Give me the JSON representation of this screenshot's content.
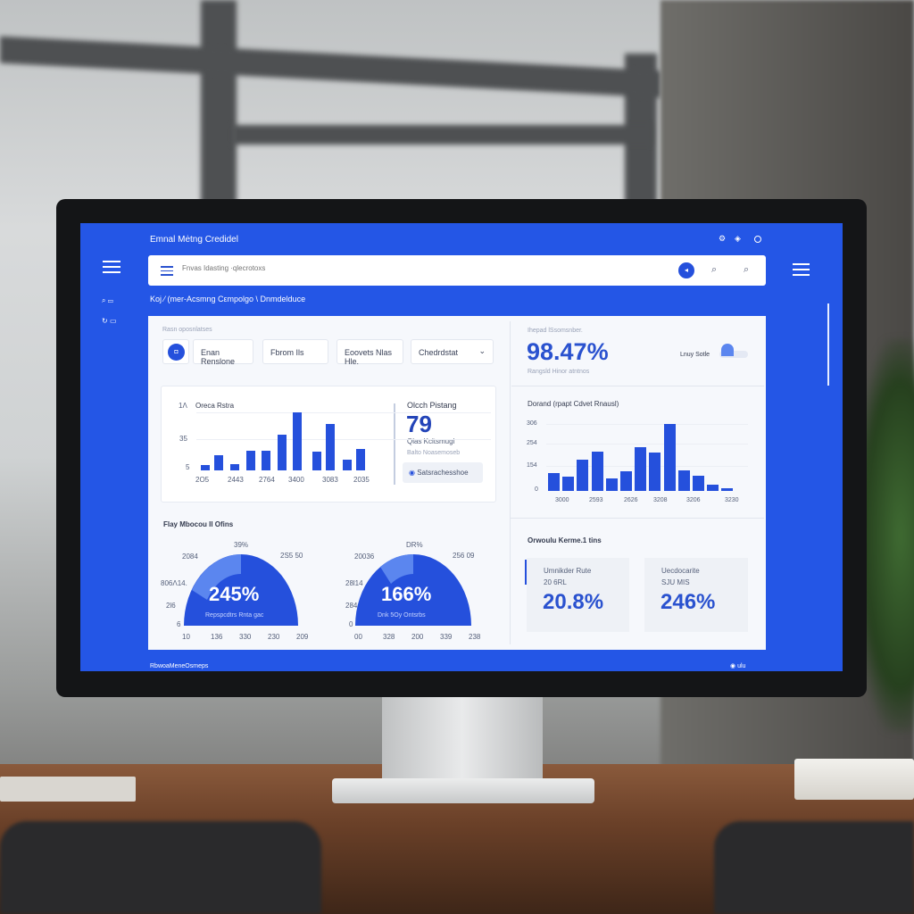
{
  "app": {
    "title": "Emnal Mėtng Credidel",
    "top_icons": [
      "settings-icon",
      "sound-icon",
      "profile-icon"
    ]
  },
  "search": {
    "placeholder": "Fnvas Idasting ·qlecrotoxs"
  },
  "breadcrumb": "Koj ⁄ (mer-Acsmng Cεmpolgo \\ Dnmdelduce",
  "sidebar": {
    "items": [
      {
        "icon": "search-icon",
        "label": "▭"
      },
      {
        "icon": "refresh-icon",
        "label": "▭"
      }
    ]
  },
  "filters": {
    "label": "Rasn oposnlatses",
    "items": [
      "Enan Renslone",
      "Fbrom Ils",
      "Eoovets Nlas Hle.",
      "Chedrdstat"
    ]
  },
  "kpi_main": {
    "label": "Ihepad lSsomsnber.",
    "value": "98.47%",
    "sub": "Rangsld Hinor atntnos",
    "toggle_label": "Lnuy Sotle"
  },
  "side_stat": {
    "label": "Olcch Pistang",
    "value": "79",
    "sub1": "Qlas Kcltsmugl",
    "sub2": "Balto Noasemoseb",
    "button": "Satsrachesshoe"
  },
  "gauges_title": "Flay Mbocou Il Ofins",
  "gauges": [
    {
      "value": "245%",
      "sub": "Repspcdtrs Rnta gac",
      "top": "39%",
      "tl": "2084",
      "tr": "2S5 50",
      "l1": "806Λ14.",
      "l2": "2l6",
      "l3": "6",
      "bottom": [
        "10",
        "136",
        "330",
        "230",
        "209"
      ]
    },
    {
      "value": "166%",
      "sub": "Dnk 5Oy Ontsrbs",
      "top": "DR%",
      "tl": "20036",
      "tr": "256 09",
      "l1": "28l14",
      "l2": "284",
      "l3": "0",
      "bottom": [
        "00",
        "328",
        "200",
        "339",
        "238"
      ]
    }
  ],
  "metrics": {
    "title": "Orwoulu Kerme.1 tins",
    "cards": [
      {
        "label": "Umnikder Rute",
        "sub": "20 6RL",
        "value": "20.8%"
      },
      {
        "label": "Uecdocarite",
        "sub": "SJU MIS",
        "value": "246%"
      }
    ]
  },
  "status_bar": {
    "left": "RbwoaMeneOsmeps",
    "right": "ulu"
  },
  "colors": {
    "screen": "#2456e6",
    "bar": "#2550dc",
    "accent_text": "#2a52cf"
  },
  "chart_data": [
    {
      "type": "bar",
      "title": "Oreca Rstra",
      "ytick_labels": [
        "1Λ",
        "35",
        "5"
      ],
      "xtick_labels": [
        "2O5",
        "2443",
        "2764",
        "3400",
        "3083",
        "2035"
      ],
      "values": [
        6,
        17,
        7,
        22,
        22,
        40,
        65,
        21,
        52,
        12,
        24
      ],
      "ylim": [
        0,
        70
      ],
      "grid": true
    },
    {
      "type": "bar",
      "title": "Dorand (rpapt Cdvet Rnausl)",
      "ytick_labels": [
        "306",
        "254",
        "154",
        "0"
      ],
      "xtick_labels": [
        "3000",
        "2593",
        "2626",
        "3208",
        "3206",
        "3230"
      ],
      "values": [
        82,
        65,
        143,
        180,
        57,
        90,
        200,
        175,
        306,
        94,
        69,
        29,
        12
      ],
      "ylim": [
        0,
        306
      ],
      "grid": true
    }
  ]
}
